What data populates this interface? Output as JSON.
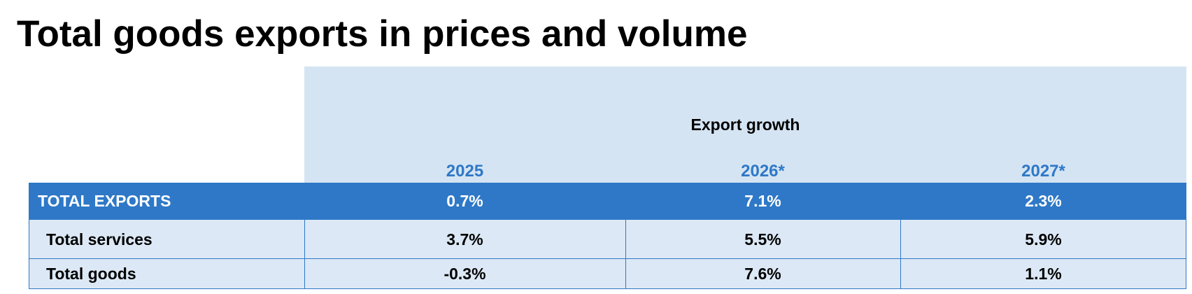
{
  "header": {
    "title": "Total goods exports in prices and volume"
  },
  "table": {
    "group_header": "Export growth",
    "columns": [
      "2025",
      "2026*",
      "2027*"
    ],
    "rows": [
      [
        "TOTAL EXPORTS",
        "0.7%",
        "7.1%",
        "2.3%"
      ],
      [
        "Total services",
        "3.7%",
        "5.5%",
        "5.9%"
      ],
      [
        "Total goods",
        "-0.3%",
        "7.6%",
        "1.1%"
      ]
    ]
  }
}
